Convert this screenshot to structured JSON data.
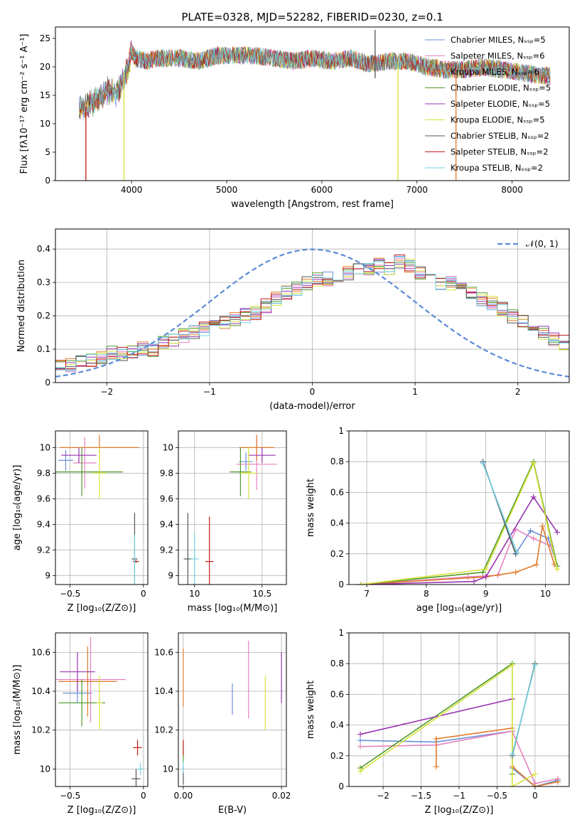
{
  "colors": {
    "Chabrier MILES": "#6a8fd8",
    "Salpeter MILES": "#e882c0",
    "Kroupa MILES": "#e07a2a",
    "Chabrier ELODIE": "#4e9a2a",
    "Salpeter ELODIE": "#9a34b0",
    "Kroupa ELODIE": "#d8e23a",
    "Chabrier STELIB": "#555555",
    "Salpeter STELIB": "#c01818",
    "Kroupa STELIB": "#72d2e0",
    "normal": "#5b8ad6",
    "grid": "#b0b0b0"
  },
  "chart_data": [
    {
      "id": "spectrum",
      "type": "line",
      "title": "PLATE=0328, MJD=52282, FIBERID=0230, z=0.1",
      "xlabel": "wavelength [Angstrom, rest frame]",
      "ylabel": "Flux [fλ10⁻¹⁷ erg cm⁻² s⁻¹ A⁻¹]",
      "xlim": [
        3200,
        8600
      ],
      "ylim": [
        0,
        27
      ],
      "xticks": [
        4000,
        5000,
        6000,
        7000,
        8000
      ],
      "yticks": [
        0,
        5,
        10,
        15,
        20,
        25
      ],
      "grid": false,
      "legend": "upper right",
      "legend_entries": [
        "Chabrier MILES, Nₛₛₚ=5",
        "Salpeter MILES, Nₛₛₚ=6",
        "Kroupa MILES, Nₛₛₚ=6",
        "Chabrier ELODIE, Nₛₛₚ=5",
        "Salpeter ELODIE, Nₛₛₚ=5",
        "Kroupa ELODIE, Nₛₛₚ=5",
        "Chabrier STELIB, Nₛₛₚ=2",
        "Salpeter STELIB, Nₛₛₚ=2",
        "Kroupa STELIB, Nₛₛₚ=2"
      ],
      "series_models": [
        "Chabrier MILES",
        "Salpeter MILES",
        "Kroupa MILES",
        "Chabrier ELODIE",
        "Salpeter ELODIE",
        "Kroupa ELODIE",
        "Chabrier STELIB",
        "Salpeter STELIB",
        "Kroupa STELIB"
      ],
      "envelope": {
        "x": [
          3450,
          3550,
          3650,
          3750,
          3850,
          3950,
          4000,
          4050,
          4150,
          4300,
          4500,
          4700,
          4900,
          5100,
          5300,
          5500,
          5700,
          5900,
          6100,
          6300,
          6500,
          6700,
          6900,
          7100,
          7300,
          7500,
          7700,
          7900,
          8100,
          8300,
          8400
        ],
        "y": [
          12.5,
          13.5,
          14.5,
          16.0,
          15.5,
          19.0,
          22.5,
          21.5,
          21.0,
          21.5,
          21.5,
          21.0,
          22.0,
          22.0,
          22.0,
          21.5,
          21.0,
          21.5,
          21.0,
          21.5,
          20.5,
          21.0,
          21.0,
          20.0,
          19.5,
          19.5,
          20.0,
          19.5,
          19.0,
          18.5,
          18.5
        ]
      },
      "drop_lines": [
        {
          "model": "Salpeter STELIB",
          "x": 3520,
          "y_low": 0,
          "y_high": 13
        },
        {
          "model": "Kroupa ELODIE",
          "x": 3920,
          "y_low": 0,
          "y_high": 19
        },
        {
          "model": "Kroupa ELODIE",
          "x": 6800,
          "y_low": 0,
          "y_high": 21
        },
        {
          "model": "Kroupa MILES",
          "x": 7410,
          "y_low": 0,
          "y_high": 19
        },
        {
          "model": "Chabrier STELIB",
          "x": 6560,
          "y_low": 18,
          "y_high": 26.5
        }
      ]
    },
    {
      "id": "residuals",
      "type": "histogram",
      "xlabel": "(data-model)/error",
      "ylabel": "Normed distribution",
      "xlim": [
        -2.5,
        2.5
      ],
      "ylim": [
        0,
        0.46
      ],
      "xticks": [
        -2,
        -1,
        0,
        1,
        2
      ],
      "yticks": [
        0.0,
        0.1,
        0.2,
        0.3,
        0.4
      ],
      "grid": true,
      "legend": "upper right",
      "legend_entries": [
        "𝒩(0, 1)"
      ],
      "bin_width": 0.1,
      "base_profile": [
        0.05,
        0.055,
        0.06,
        0.07,
        0.07,
        0.09,
        0.085,
        0.09,
        0.1,
        0.1,
        0.12,
        0.13,
        0.14,
        0.15,
        0.16,
        0.17,
        0.18,
        0.19,
        0.2,
        0.21,
        0.23,
        0.25,
        0.27,
        0.28,
        0.3,
        0.31,
        0.31,
        0.32,
        0.33,
        0.34,
        0.34,
        0.35,
        0.34,
        0.36,
        0.35,
        0.33,
        0.32,
        0.3,
        0.3,
        0.28,
        0.27,
        0.25,
        0.24,
        0.22,
        0.2,
        0.18,
        0.17,
        0.15,
        0.13,
        0.12
      ],
      "models": [
        "Chabrier MILES",
        "Salpeter MILES",
        "Kroupa MILES",
        "Chabrier ELODIE",
        "Salpeter ELODIE",
        "Kroupa ELODIE",
        "Chabrier STELIB",
        "Salpeter STELIB",
        "Kroupa STELIB"
      ],
      "normal_curve": {
        "mu": 0,
        "sigma": 1,
        "style": "dashed"
      }
    },
    {
      "id": "age_vs_Z",
      "type": "errorbar",
      "xlabel": "Z [log₁₀(Z/Z⊙)]",
      "ylabel": "age  [log₁₀(age/yr)]",
      "xlim": [
        -0.6,
        0.03
      ],
      "ylim": [
        8.93,
        10.13
      ],
      "xticks": [
        -0.5,
        0.0
      ],
      "yticks": [
        9.0,
        9.2,
        9.4,
        9.6,
        9.8,
        10.0
      ],
      "grid": true,
      "points": [
        {
          "model": "Chabrier MILES",
          "x": -0.53,
          "xerr": 0.05,
          "y": 9.9,
          "yerr": 0.08
        },
        {
          "model": "Salpeter MILES",
          "x": -0.4,
          "xerr": 0.08,
          "y": 9.88,
          "yerr": 0.2
        },
        {
          "model": "Kroupa MILES",
          "x": -0.3,
          "xerr": 0.27,
          "y": 10.0,
          "yerr": 0.1
        },
        {
          "model": "Chabrier ELODIE",
          "x": -0.42,
          "xerr": 0.28,
          "y": 9.81,
          "yerr": 0.19
        },
        {
          "model": "Salpeter ELODIE",
          "x": -0.44,
          "xerr": 0.12,
          "y": 9.94,
          "yerr": 0.06
        },
        {
          "model": "Kroupa ELODIE",
          "x": -0.3,
          "xerr": 0.05,
          "y": 9.8,
          "yerr": 0.2
        },
        {
          "model": "Chabrier STELIB",
          "x": -0.06,
          "xerr": 0.02,
          "y": 9.13,
          "yerr": 0.36
        },
        {
          "model": "Salpeter STELIB",
          "x": -0.05,
          "xerr": 0.02,
          "y": 9.11,
          "yerr": 0.01
        },
        {
          "model": "Kroupa STELIB",
          "x": -0.06,
          "xerr": 0.01,
          "y": 9.12,
          "yerr": 0.2
        }
      ]
    },
    {
      "id": "age_vs_mass",
      "type": "errorbar",
      "xlabel": "mass [log₁₀(M/M⊙)]",
      "ylabel": "",
      "xlim": [
        9.88,
        10.68
      ],
      "ylim": [
        8.93,
        10.13
      ],
      "xticks": [
        10.0,
        10.5
      ],
      "yticks": [
        9.0,
        9.2,
        9.4,
        9.6,
        9.8,
        10.0
      ],
      "grid": true,
      "points": [
        {
          "model": "Chabrier MILES",
          "x": 10.38,
          "xerr": 0.05,
          "y": 9.89,
          "yerr": 0.07
        },
        {
          "model": "Salpeter MILES",
          "x": 10.46,
          "xerr": 0.15,
          "y": 9.87,
          "yerr": 0.2
        },
        {
          "model": "Kroupa MILES",
          "x": 10.46,
          "xerr": 0.13,
          "y": 10.0,
          "yerr": 0.1
        },
        {
          "model": "Chabrier ELODIE",
          "x": 10.34,
          "xerr": 0.08,
          "y": 9.81,
          "yerr": 0.19
        },
        {
          "model": "Salpeter ELODIE",
          "x": 10.5,
          "xerr": 0.1,
          "y": 9.94,
          "yerr": 0.06
        },
        {
          "model": "Kroupa ELODIE",
          "x": 10.4,
          "xerr": 0.06,
          "y": 9.8,
          "yerr": 0.2
        },
        {
          "model": "Chabrier STELIB",
          "x": 9.95,
          "xerr": 0.03,
          "y": 9.13,
          "yerr": 0.36
        },
        {
          "model": "Salpeter STELIB",
          "x": 10.11,
          "xerr": 0.03,
          "y": 9.11,
          "yerr": 0.35
        },
        {
          "model": "Kroupa STELIB",
          "x": 10.0,
          "xerr": 0.03,
          "y": 9.13,
          "yerr": 0.2
        }
      ]
    },
    {
      "id": "weight_vs_age",
      "type": "line",
      "xlabel": "age  [log₁₀(age/yr)]",
      "ylabel": "mass weight",
      "xlim": [
        6.7,
        10.4
      ],
      "ylim": [
        0,
        1
      ],
      "xticks": [
        7,
        8,
        9,
        10
      ],
      "yticks": [
        0.0,
        0.2,
        0.4,
        0.6,
        0.8,
        1.0
      ],
      "grid": true,
      "series": [
        {
          "model": "Chabrier MILES",
          "x": [
            8.95,
            9.5,
            9.75,
            10.05,
            10.2
          ],
          "y": [
            0.8,
            0.2,
            0.35,
            0.3,
            0.12
          ]
        },
        {
          "model": "Salpeter MILES",
          "x": [
            6.9,
            8.7,
            9.2,
            9.5,
            9.8,
            10.1
          ],
          "y": [
            0.0,
            0.05,
            0.06,
            0.36,
            0.3,
            0.25
          ]
        },
        {
          "model": "Kroupa MILES",
          "x": [
            6.9,
            9.0,
            9.5,
            9.85,
            9.95,
            10.15
          ],
          "y": [
            0.0,
            0.05,
            0.08,
            0.13,
            0.38,
            0.13
          ]
        },
        {
          "model": "Chabrier ELODIE",
          "x": [
            6.9,
            8.95,
            9.8,
            10.2
          ],
          "y": [
            0.0,
            0.08,
            0.8,
            0.12
          ]
        },
        {
          "model": "Salpeter ELODIE",
          "x": [
            6.9,
            8.8,
            9.0,
            9.8,
            10.2
          ],
          "y": [
            0.0,
            0.02,
            0.05,
            0.57,
            0.34
          ]
        },
        {
          "model": "Kroupa ELODIE",
          "x": [
            6.9,
            9.0,
            9.8,
            10.2
          ],
          "y": [
            0.0,
            0.1,
            0.79,
            0.1
          ]
        },
        {
          "model": "Chabrier STELIB",
          "x": [
            8.95,
            9.5
          ],
          "y": [
            0.8,
            0.2
          ]
        },
        {
          "model": "Kroupa STELIB",
          "x": [
            8.95,
            9.52
          ],
          "y": [
            0.79,
            0.21
          ]
        }
      ]
    },
    {
      "id": "mass_vs_Z",
      "type": "errorbar",
      "xlabel": "Z [log₁₀(Z/Z⊙)]",
      "ylabel": "mass [log₁₀(M/M⊙)]",
      "xlim": [
        -0.6,
        0.03
      ],
      "ylim": [
        9.91,
        10.7
      ],
      "xticks": [
        -0.5,
        0.0
      ],
      "yticks": [
        10.0,
        10.2,
        10.4,
        10.6
      ],
      "grid": true,
      "points": [
        {
          "model": "Chabrier MILES",
          "x": -0.45,
          "xerr": 0.1,
          "y": 10.39,
          "yerr": 0.05
        },
        {
          "model": "Salpeter MILES",
          "x": -0.36,
          "xerr": 0.24,
          "y": 10.46,
          "yerr": 0.22
        },
        {
          "model": "Kroupa MILES",
          "x": -0.38,
          "xerr": 0.2,
          "y": 10.45,
          "yerr": 0.18
        },
        {
          "model": "Chabrier ELODIE",
          "x": -0.42,
          "xerr": 0.16,
          "y": 10.34,
          "yerr": 0.12
        },
        {
          "model": "Salpeter ELODIE",
          "x": -0.45,
          "xerr": 0.12,
          "y": 10.5,
          "yerr": 0.1
        },
        {
          "model": "Kroupa ELODIE",
          "x": -0.3,
          "xerr": 0.02,
          "y": 10.34,
          "yerr": 0.14
        },
        {
          "model": "Chabrier STELIB",
          "x": -0.05,
          "xerr": 0.03,
          "y": 9.95,
          "yerr": 0.05
        },
        {
          "model": "Salpeter STELIB",
          "x": -0.04,
          "xerr": 0.03,
          "y": 10.11,
          "yerr": 0.04
        },
        {
          "model": "Kroupa STELIB",
          "x": -0.02,
          "xerr": 0.02,
          "y": 10.0,
          "yerr": 0.03
        }
      ]
    },
    {
      "id": "mass_vs_ebv",
      "type": "errorbar",
      "xlabel": "E(B-V)",
      "ylabel": "",
      "xlim": [
        -0.001,
        0.021
      ],
      "ylim": [
        9.91,
        10.7
      ],
      "xticks": [
        0.0,
        0.02
      ],
      "xtick_labels": [
        "0.00",
        "0.02"
      ],
      "yticks": [
        10.0,
        10.2,
        10.4,
        10.6
      ],
      "grid": true,
      "points": [
        {
          "model": "Chabrier MILES",
          "x": 0.01,
          "y": 10.36,
          "yerr": 0.08
        },
        {
          "model": "Salpeter MILES",
          "x": 0.0133,
          "y": 10.46,
          "yerr": 0.2
        },
        {
          "model": "Kroupa MILES",
          "x": 0.0,
          "y": 10.47,
          "yerr": 0.15
        },
        {
          "model": "Chabrier ELODIE",
          "x": 0.0,
          "y": 10.07,
          "yerr": 0.05
        },
        {
          "model": "Salpeter ELODIE",
          "x": 0.02,
          "y": 10.47,
          "yerr": 0.13
        },
        {
          "model": "Kroupa ELODIE",
          "x": 0.0167,
          "y": 10.34,
          "yerr": 0.14
        },
        {
          "model": "Chabrier STELIB",
          "x": 0.0,
          "y": 9.97,
          "yerr": 0.05
        },
        {
          "model": "Salpeter STELIB",
          "x": 0.0,
          "y": 10.11,
          "yerr": 0.04
        },
        {
          "model": "Kroupa STELIB",
          "x": 0.0,
          "y": 10.01,
          "yerr": 0.03
        }
      ]
    },
    {
      "id": "weight_vs_Z",
      "type": "line",
      "xlabel": "Z [log₁₀(Z/Z⊙)]",
      "ylabel": "mass weight",
      "xlim": [
        -2.45,
        0.45
      ],
      "ylim": [
        0,
        1
      ],
      "xticks": [
        -2.0,
        -1.5,
        -1.0,
        -0.5,
        0.0
      ],
      "yticks": [
        0.0,
        0.2,
        0.4,
        0.6,
        0.8,
        1.0
      ],
      "grid": true,
      "series": [
        {
          "model": "Chabrier MILES",
          "x": [
            -2.3,
            -1.3,
            -0.3,
            -0.3,
            0.0,
            0.3
          ],
          "y": [
            0.3,
            0.29,
            0.36,
            0.12,
            0.0,
            0.04
          ]
        },
        {
          "model": "Salpeter MILES",
          "x": [
            -2.3,
            -1.3,
            -0.3,
            0.0,
            0.3
          ],
          "y": [
            0.26,
            0.27,
            0.36,
            0.02,
            0.05
          ]
        },
        {
          "model": "Kroupa MILES",
          "x": [
            -1.3,
            -1.3,
            -0.3,
            -0.3,
            0.0,
            0.3
          ],
          "y": [
            0.13,
            0.31,
            0.38,
            0.13,
            0.0,
            0.03
          ]
        },
        {
          "model": "Chabrier ELODIE",
          "x": [
            -2.3,
            -0.3,
            -0.3
          ],
          "y": [
            0.12,
            0.8,
            0.08
          ]
        },
        {
          "model": "Salpeter ELODIE",
          "x": [
            -2.3,
            -0.3
          ],
          "y": [
            0.34,
            0.57
          ]
        },
        {
          "model": "Kroupa ELODIE",
          "x": [
            -2.3,
            -0.3,
            -0.3,
            0.0
          ],
          "y": [
            0.1,
            0.79,
            0.0,
            0.08
          ]
        },
        {
          "model": "Chabrier STELIB",
          "x": [
            -0.3,
            0.0
          ],
          "y": [
            0.2,
            0.8
          ]
        },
        {
          "model": "Kroupa STELIB",
          "x": [
            -0.3,
            0.0
          ],
          "y": [
            0.21,
            0.79
          ]
        }
      ]
    }
  ]
}
